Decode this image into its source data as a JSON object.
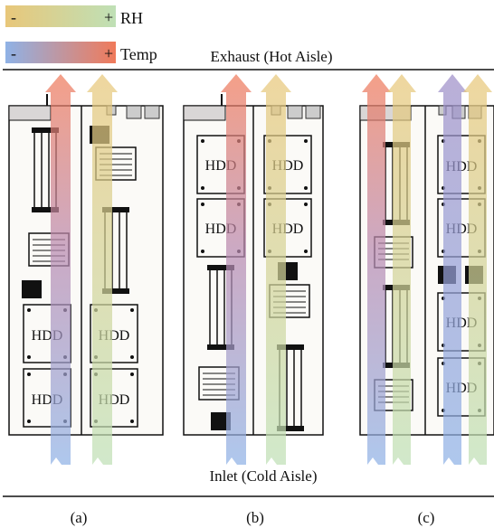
{
  "legend": {
    "rh": {
      "minus": "-",
      "plus": "+",
      "label": "RH"
    },
    "temp": {
      "minus": "-",
      "plus": "+",
      "label": "Temp"
    }
  },
  "labels": {
    "exhaust": "Exhaust (Hot Aisle)",
    "inlet": "Inlet (Cold Aisle)"
  },
  "drive_label": "HDD",
  "panels": [
    {
      "caption": "(a)"
    },
    {
      "caption": "(b)"
    },
    {
      "caption": "(c)"
    }
  ],
  "colors": {
    "rh_low": "#e8c77a",
    "rh_high": "#bfe0b6",
    "temp_low": "#8fb2e6",
    "temp_high": "#f07a5a",
    "board": "#fbfaf7",
    "chip": "#111111",
    "psu": "#d9d6d6"
  }
}
